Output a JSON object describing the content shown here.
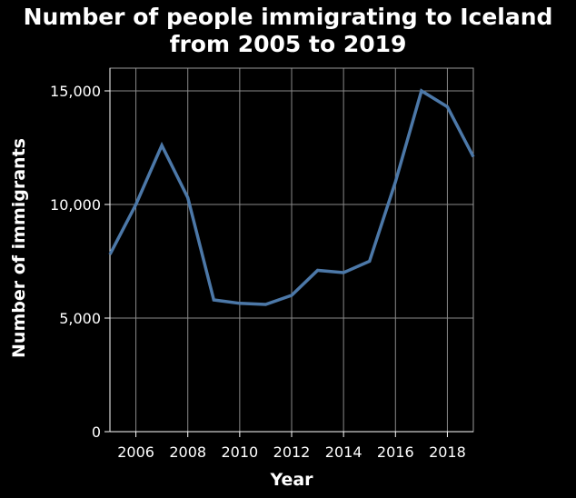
{
  "chart_data": {
    "type": "line",
    "title_lines": [
      "Number of people immigrating to Iceland",
      "from 2005 to 2019"
    ],
    "xlabel": "Year",
    "ylabel": "Number of immigrants",
    "xlim": [
      2005,
      2019
    ],
    "ylim": [
      0,
      16000
    ],
    "x_ticks": [
      2006,
      2008,
      2010,
      2012,
      2014,
      2016,
      2018
    ],
    "x_tick_labels": [
      "2006",
      "2008",
      "2010",
      "2012",
      "2014",
      "2016",
      "2018"
    ],
    "y_ticks": [
      0,
      5000,
      10000,
      15000
    ],
    "y_tick_labels": [
      "0",
      "5,000",
      "10,000",
      "15,000"
    ],
    "grid": true,
    "series": [
      {
        "x": [
          2005,
          2006,
          2007,
          2008,
          2009,
          2010,
          2011,
          2012,
          2013,
          2014,
          2015,
          2016,
          2017,
          2018,
          2019
        ],
        "values": [
          7800,
          10000,
          12600,
          10300,
          5800,
          5650,
          5600,
          6000,
          7100,
          7000,
          7500,
          11000,
          15000,
          14300,
          12100
        ],
        "color": "#4c78a8"
      }
    ]
  }
}
